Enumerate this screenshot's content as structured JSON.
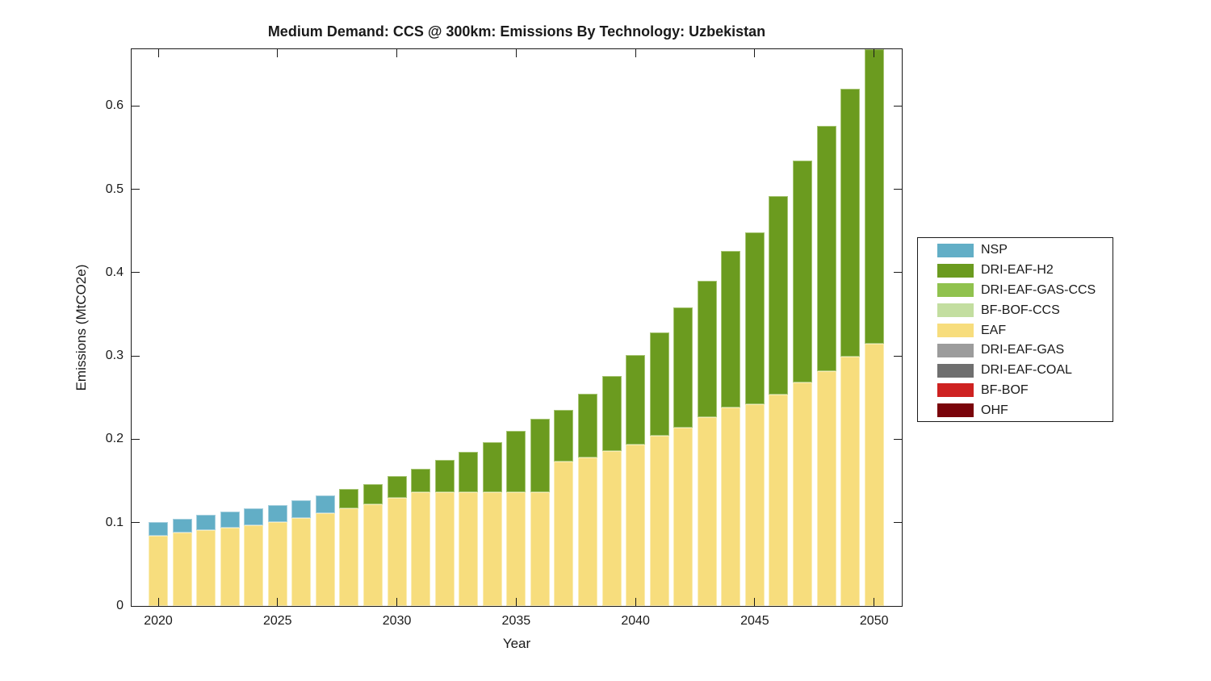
{
  "title": "Medium Demand: CCS @ 300km: Emissions By Technology: Uzbekistan",
  "chart_data": {
    "type": "bar",
    "stacked": true,
    "title": "Medium Demand: CCS @ 300km: Emissions By Technology: Uzbekistan",
    "xlabel": "Year",
    "ylabel": "Emissions (MtCO2e)",
    "x": [
      2020,
      2021,
      2022,
      2023,
      2024,
      2025,
      2026,
      2027,
      2028,
      2029,
      2030,
      2031,
      2032,
      2033,
      2034,
      2035,
      2036,
      2037,
      2038,
      2039,
      2040,
      2041,
      2042,
      2043,
      2044,
      2045,
      2046,
      2047,
      2048,
      2049,
      2050
    ],
    "xticks": [
      2020,
      2025,
      2030,
      2035,
      2040,
      2045,
      2050
    ],
    "yticks": [
      0,
      0.1,
      0.2,
      0.3,
      0.4,
      0.5,
      0.6
    ],
    "ytick_labels": [
      "0",
      "0.1",
      "0.2",
      "0.3",
      "0.4",
      "0.5",
      "0.6"
    ],
    "xlim": [
      2018.9,
      2051.1
    ],
    "ylim": [
      0,
      0.668
    ],
    "grid": false,
    "legend_position": "right-outside",
    "axis_color": "#1a1a1a",
    "background": "#ffffff",
    "series": [
      {
        "name": "OHF",
        "color": "#7A040B",
        "edge": "#B06066",
        "values": [
          0,
          0,
          0,
          0,
          0,
          0,
          0,
          0,
          0,
          0,
          0,
          0,
          0,
          0,
          0,
          0,
          0,
          0,
          0,
          0,
          0,
          0,
          0,
          0,
          0,
          0,
          0,
          0,
          0,
          0,
          0
        ]
      },
      {
        "name": "BF-BOF",
        "color": "#CE2221",
        "edge": "#E28B8A",
        "values": [
          0,
          0,
          0,
          0,
          0,
          0,
          0,
          0,
          0,
          0,
          0,
          0,
          0,
          0,
          0,
          0,
          0,
          0,
          0,
          0,
          0,
          0,
          0,
          0,
          0,
          0,
          0,
          0,
          0,
          0,
          0
        ]
      },
      {
        "name": "DRI-EAF-COAL",
        "color": "#6F6F6F",
        "edge": "#A8A8A8",
        "values": [
          0,
          0,
          0,
          0,
          0,
          0,
          0,
          0,
          0,
          0,
          0,
          0,
          0,
          0,
          0,
          0,
          0,
          0,
          0,
          0,
          0,
          0,
          0,
          0,
          0,
          0,
          0,
          0,
          0,
          0,
          0
        ]
      },
      {
        "name": "DRI-EAF-GAS",
        "color": "#9C9C9C",
        "edge": "#C6C6C6",
        "values": [
          0,
          0,
          0,
          0,
          0,
          0,
          0,
          0,
          0,
          0,
          0,
          0,
          0,
          0,
          0,
          0,
          0,
          0,
          0,
          0,
          0,
          0,
          0,
          0,
          0,
          0,
          0,
          0,
          0,
          0,
          0
        ]
      },
      {
        "name": "EAF",
        "color": "#F7DD7D",
        "edge": "#FBEDB2",
        "values": [
          0.084,
          0.088,
          0.091,
          0.094,
          0.097,
          0.101,
          0.106,
          0.111,
          0.117,
          0.122,
          0.13,
          0.137,
          0.137,
          0.137,
          0.137,
          0.137,
          0.137,
          0.173,
          0.178,
          0.186,
          0.194,
          0.204,
          0.214,
          0.227,
          0.238,
          0.242,
          0.254,
          0.268,
          0.282,
          0.299,
          0.315
        ]
      },
      {
        "name": "BF-BOF-CCS",
        "color": "#C3DEA0",
        "edge": "#DDEDC7",
        "values": [
          0,
          0,
          0,
          0,
          0,
          0,
          0,
          0,
          0,
          0,
          0,
          0,
          0,
          0,
          0,
          0,
          0,
          0,
          0,
          0,
          0,
          0,
          0,
          0,
          0,
          0,
          0,
          0,
          0,
          0,
          0
        ]
      },
      {
        "name": "DRI-EAF-GAS-CCS",
        "color": "#90C24E",
        "edge": "#BCDB92",
        "values": [
          0,
          0,
          0,
          0,
          0,
          0,
          0,
          0,
          0,
          0,
          0,
          0,
          0,
          0,
          0,
          0,
          0,
          0,
          0,
          0,
          0,
          0,
          0,
          0,
          0,
          0,
          0,
          0,
          0,
          0,
          0
        ]
      },
      {
        "name": "DRI-EAF-H2",
        "color": "#6B9B1F",
        "edge": "#A7C574",
        "values": [
          0,
          0,
          0,
          0,
          0,
          0,
          0,
          0,
          0.023,
          0.024,
          0.026,
          0.028,
          0.038,
          0.048,
          0.06,
          0.073,
          0.088,
          0.062,
          0.077,
          0.09,
          0.107,
          0.124,
          0.144,
          0.163,
          0.188,
          0.206,
          0.238,
          0.266,
          0.294,
          0.322,
          0.353
        ]
      },
      {
        "name": "NSP",
        "color": "#62AEC6",
        "edge": "#A5CFDE",
        "values": [
          0.017,
          0.017,
          0.018,
          0.019,
          0.02,
          0.02,
          0.021,
          0.022,
          0,
          0,
          0,
          0,
          0,
          0,
          0,
          0,
          0,
          0,
          0,
          0,
          0,
          0,
          0,
          0,
          0,
          0,
          0,
          0,
          0,
          0,
          0
        ]
      }
    ],
    "legend": [
      {
        "label": "NSP",
        "color": "#62AEC6"
      },
      {
        "label": "DRI-EAF-H2",
        "color": "#6B9B1F"
      },
      {
        "label": "DRI-EAF-GAS-CCS",
        "color": "#90C24E"
      },
      {
        "label": "BF-BOF-CCS",
        "color": "#C3DEA0"
      },
      {
        "label": "EAF",
        "color": "#F7DD7D"
      },
      {
        "label": "DRI-EAF-GAS",
        "color": "#9C9C9C"
      },
      {
        "label": "DRI-EAF-COAL",
        "color": "#6F6F6F"
      },
      {
        "label": "BF-BOF",
        "color": "#CE2221"
      },
      {
        "label": "OHF",
        "color": "#7A040B"
      }
    ]
  }
}
